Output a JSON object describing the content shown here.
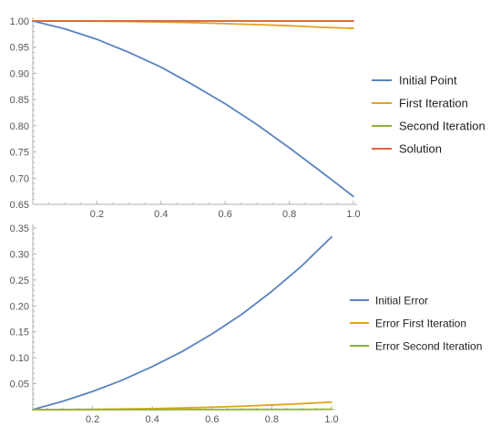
{
  "chart_data": [
    {
      "type": "line",
      "title": "",
      "xlabel": "",
      "ylabel": "",
      "xlim": [
        0,
        1.0
      ],
      "ylim": [
        0.65,
        1.0
      ],
      "x_ticks": [
        0.2,
        0.4,
        0.6,
        0.8,
        1.0
      ],
      "x_tick_labels": [
        "0.2",
        "0.4",
        "0.6",
        "0.8",
        "1.0"
      ],
      "y_ticks": [
        0.65,
        0.7,
        0.75,
        0.8,
        0.85,
        0.9,
        0.95,
        1.0
      ],
      "y_tick_labels": [
        "0.65",
        "0.70",
        "0.75",
        "0.80",
        "0.85",
        "0.90",
        "0.95",
        "1.00"
      ],
      "x": [
        0,
        0.1,
        0.2,
        0.3,
        0.4,
        0.5,
        0.6,
        0.7,
        0.8,
        0.9,
        1.0
      ],
      "grid": false,
      "legend_position": "right",
      "series": [
        {
          "name": "Initial Point",
          "color": "#5b83bf",
          "values": [
            1.0,
            0.985,
            0.965,
            0.94,
            0.912,
            0.878,
            0.842,
            0.802,
            0.758,
            0.712,
            0.665
          ]
        },
        {
          "name": "First Iteration",
          "color": "#e5a21d",
          "values": [
            1.0,
            0.9999,
            0.9996,
            0.999,
            0.998,
            0.9968,
            0.995,
            0.993,
            0.991,
            0.988,
            0.986
          ]
        },
        {
          "name": "Second Iteration",
          "color": "#90b030",
          "values": [
            1.0,
            1.0,
            1.0,
            1.0,
            1.0,
            1.0,
            1.0,
            1.0,
            1.0,
            1.0,
            1.0
          ]
        },
        {
          "name": "Solution",
          "color": "#e1623a",
          "values": [
            1.0,
            1.0,
            1.0,
            1.0,
            1.0,
            1.0,
            1.0,
            1.0,
            1.0,
            1.0,
            1.0
          ]
        }
      ]
    },
    {
      "type": "line",
      "title": "",
      "xlabel": "",
      "ylabel": "",
      "xlim": [
        0,
        1.0
      ],
      "ylim": [
        0,
        0.35
      ],
      "x_ticks": [
        0.2,
        0.4,
        0.6,
        0.8,
        1.0
      ],
      "x_tick_labels": [
        "0.2",
        "0.4",
        "0.6",
        "0.8",
        "1.0"
      ],
      "y_ticks": [
        0.05,
        0.1,
        0.15,
        0.2,
        0.25,
        0.3,
        0.35
      ],
      "y_tick_labels": [
        "0.05",
        "0.10",
        "0.15",
        "0.20",
        "0.25",
        "0.30",
        "0.35"
      ],
      "x": [
        0,
        0.1,
        0.2,
        0.3,
        0.4,
        0.5,
        0.6,
        0.7,
        0.8,
        0.9,
        1.0
      ],
      "grid": false,
      "legend_position": "right",
      "series": [
        {
          "name": "Initial Error",
          "color": "#5b83bf",
          "values": [
            0,
            0.016,
            0.035,
            0.057,
            0.083,
            0.112,
            0.146,
            0.184,
            0.228,
            0.277,
            0.333
          ]
        },
        {
          "name": "Error First Iteration",
          "color": "#e5a21d",
          "values": [
            0,
            0.0002,
            0.0006,
            0.0012,
            0.002,
            0.0032,
            0.0047,
            0.0066,
            0.0089,
            0.0115,
            0.0145
          ]
        },
        {
          "name": "Error Second Iteration",
          "color": "#90b030",
          "values": [
            0,
            0,
            2e-05,
            5e-05,
            0.0001,
            0.00015,
            0.0002,
            0.0003,
            0.0004,
            0.0005,
            0.0006
          ]
        }
      ]
    }
  ]
}
